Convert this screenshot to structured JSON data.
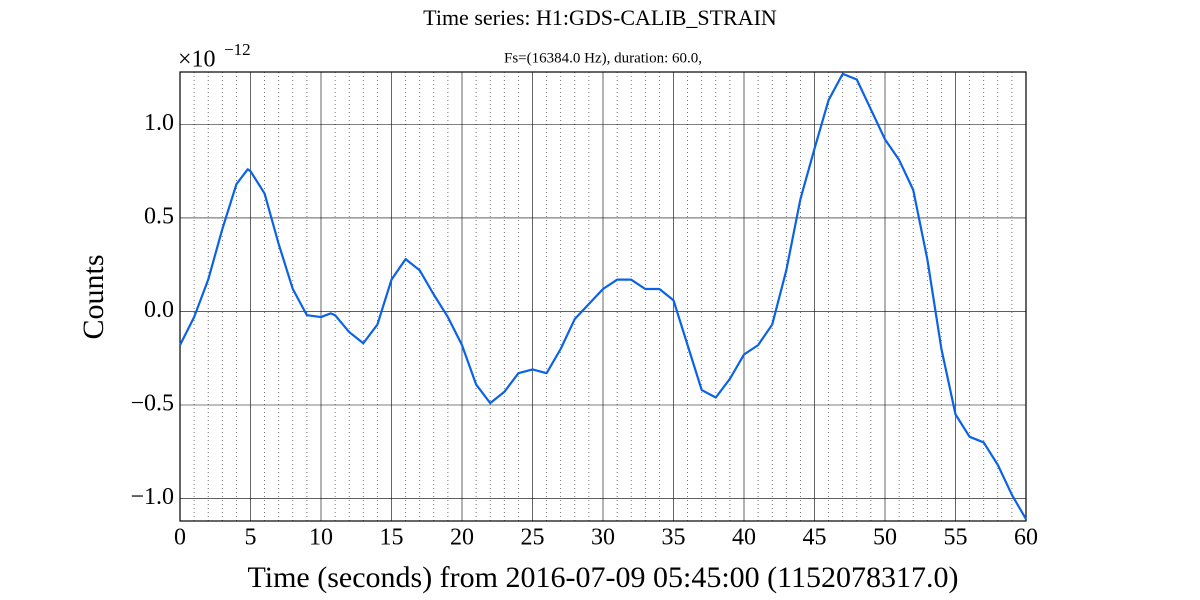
{
  "chart_data": {
    "type": "line",
    "title": "Time series:  H1:GDS-CALIB_STRAIN",
    "subtitle": "Fs=(16384.0 Hz), duration: 60.0,",
    "x_label": "Time (seconds) from 2016-07-09 05:45:00 (1152078317.0)",
    "y_label": "Counts",
    "y_offset_label": {
      "base": "×10",
      "exponent": "−12"
    },
    "xlim": [
      0,
      60
    ],
    "ylim": [
      -1.12,
      1.28
    ],
    "xticks": [
      0,
      5,
      10,
      15,
      20,
      25,
      30,
      35,
      40,
      45,
      50,
      55,
      60
    ],
    "xminorticks": [
      1,
      2,
      3,
      4,
      6,
      7,
      8,
      9,
      11,
      12,
      13,
      14,
      16,
      17,
      18,
      19,
      21,
      22,
      23,
      24,
      26,
      27,
      28,
      29,
      31,
      32,
      33,
      34,
      36,
      37,
      38,
      39,
      41,
      42,
      43,
      44,
      46,
      47,
      48,
      49,
      51,
      52,
      53,
      54,
      56,
      57,
      58,
      59
    ],
    "yticks": [
      {
        "value": -1.0,
        "label": "−1.0"
      },
      {
        "value": -0.5,
        "label": "−0.5"
      },
      {
        "value": 0.0,
        "label": "0.0"
      },
      {
        "value": 0.5,
        "label": "0.5"
      },
      {
        "value": 1.0,
        "label": "1.0"
      }
    ],
    "grid": true,
    "minor_grid": true,
    "series": [
      {
        "color": "#0b62e6",
        "x": [
          0,
          1,
          2,
          3,
          4,
          4.8,
          5,
          6,
          7,
          8,
          9,
          10,
          10.7,
          11,
          12,
          13,
          14,
          15,
          16,
          17,
          18,
          19,
          20,
          21,
          22,
          23,
          24,
          25,
          26,
          27,
          28,
          29,
          30,
          31,
          32,
          33,
          34,
          35,
          36,
          37,
          38,
          39,
          40,
          41,
          42,
          43,
          44,
          45,
          46,
          47,
          48,
          49,
          50,
          51,
          52,
          53,
          54,
          55,
          56,
          57,
          58,
          59,
          60
        ],
        "values": [
          -0.18,
          -0.03,
          0.17,
          0.44,
          0.68,
          0.76,
          0.75,
          0.63,
          0.36,
          0.12,
          -0.02,
          -0.03,
          -0.01,
          -0.02,
          -0.11,
          -0.17,
          -0.07,
          0.17,
          0.28,
          0.22,
          0.09,
          -0.03,
          -0.18,
          -0.39,
          -0.49,
          -0.43,
          -0.33,
          -0.31,
          -0.33,
          -0.2,
          -0.04,
          0.04,
          0.12,
          0.17,
          0.17,
          0.12,
          0.12,
          0.06,
          -0.18,
          -0.42,
          -0.46,
          -0.36,
          -0.23,
          -0.18,
          -0.07,
          0.22,
          0.6,
          0.87,
          1.13,
          1.27,
          1.24,
          1.08,
          0.92,
          0.81,
          0.65,
          0.28,
          -0.2,
          -0.55,
          -0.67,
          -0.7,
          -0.82,
          -0.98,
          -1.11
        ]
      }
    ]
  }
}
